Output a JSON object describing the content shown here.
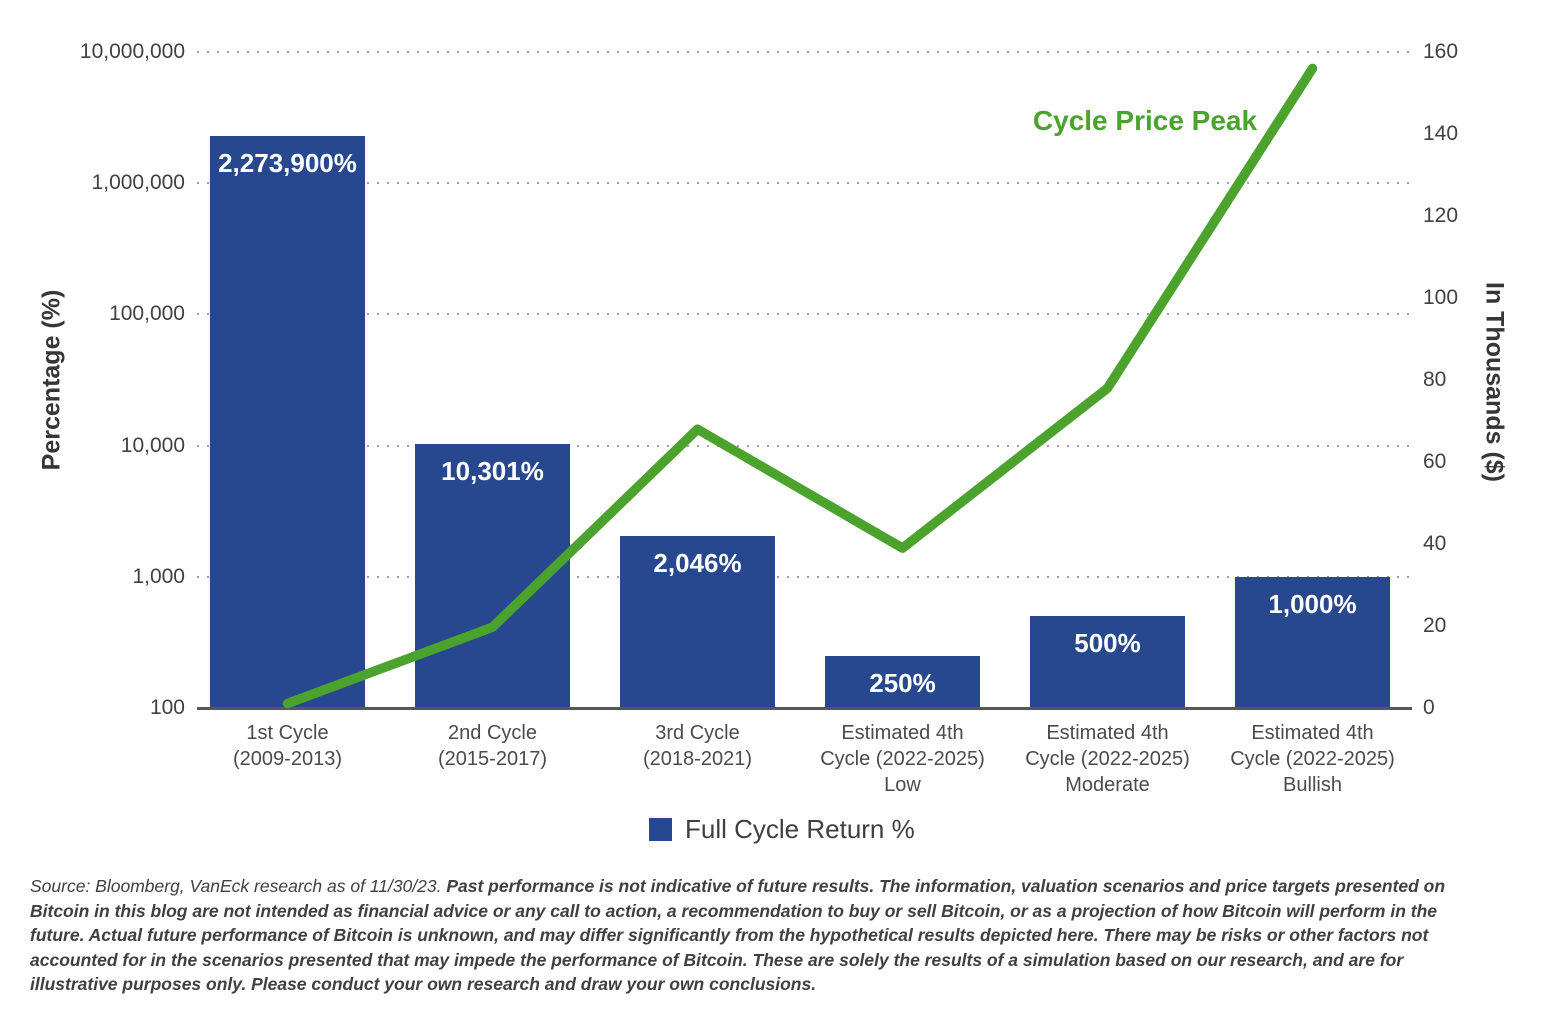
{
  "chart_data": {
    "type": "combo-bar-line",
    "categories": [
      [
        "1st Cycle",
        "(2009-2013)"
      ],
      [
        "2nd Cycle",
        "(2015-2017)"
      ],
      [
        "3rd Cycle",
        "(2018-2021)"
      ],
      [
        "Estimated 4th",
        "Cycle (2022-2025)",
        "Low"
      ],
      [
        "Estimated 4th",
        "Cycle (2022-2025)",
        "Moderate"
      ],
      [
        "Estimated 4th",
        "Cycle (2022-2025)",
        "Bullish"
      ]
    ],
    "series": [
      {
        "name": "Full Cycle Return %",
        "type": "bar",
        "axis": "left",
        "values": [
          2273900,
          10301,
          2046,
          250,
          500,
          1000
        ],
        "labels": [
          "2,273,900%",
          "10,301%",
          "2,046%",
          "250%",
          "500%",
          "1,000%"
        ],
        "color": "#27478E"
      },
      {
        "name": "Cycle Price Peak",
        "type": "line",
        "axis": "right",
        "values": [
          1.1,
          19.7,
          68,
          39,
          78,
          156
        ],
        "color": "#4BA32D"
      }
    ],
    "left_axis": {
      "label": "Percentage (%)",
      "scale": "log",
      "ticks": [
        "10,000,000",
        "1,000,000",
        "100,000",
        "10,000",
        "1,000",
        "100"
      ],
      "tick_values": [
        10000000,
        1000000,
        100000,
        10000,
        1000,
        100
      ],
      "min": 100,
      "max": 10000000,
      "grid": "dotted"
    },
    "right_axis": {
      "label": "In Thousands ($)",
      "scale": "linear",
      "ticks": [
        "160",
        "140",
        "120",
        "100",
        "80",
        "60",
        "40",
        "20",
        "0"
      ],
      "tick_values": [
        160,
        140,
        120,
        100,
        80,
        60,
        40,
        20,
        0
      ],
      "min": 0,
      "max": 160
    },
    "line_annotation": "Cycle Price Peak",
    "legend": {
      "position": "bottom-center",
      "items": [
        {
          "label": "Full Cycle Return %",
          "color": "#27478E"
        }
      ]
    }
  },
  "footer": {
    "source_text": "Source: Bloomberg, VanEck research as of 11/30/23.",
    "disclaimer_text": "Past performance is not indicative of future results. The information, valuation scenarios and price targets presented on Bitcoin in this blog are not intended as financial advice or any call to action, a recommendation to buy or sell Bitcoin, or as a projection of how Bitcoin will perform in the future. Actual future performance of Bitcoin is unknown, and may differ significantly from the hypothetical results depicted here. There may be risks or other factors not accounted for in the scenarios presented that may impede the performance of Bitcoin. These are solely the results of a simulation based on our research, and are for illustrative purposes only. Please conduct your own research and draw your own conclusions."
  },
  "colors": {
    "bar": "#27478E",
    "line": "#4BA32D",
    "grid": "#8f8f8f",
    "axis_line": "#56575a",
    "text": "#414042"
  }
}
